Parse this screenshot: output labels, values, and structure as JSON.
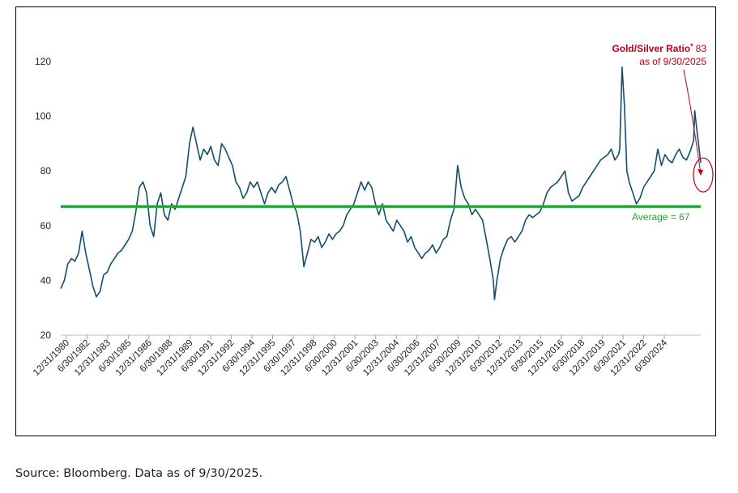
{
  "source_note": "Source: Bloomberg. Data as of 9/30/2025.",
  "colors": {
    "series": "#134f6a",
    "average": "#22a83a",
    "annotation": "#c0001a"
  },
  "chart_data": {
    "type": "line",
    "title": "",
    "xlabel": "",
    "ylabel": "",
    "ylim": [
      20,
      120
    ],
    "yticks": [
      20,
      40,
      60,
      80,
      100,
      120
    ],
    "grid": false,
    "x_tick_labels": [
      "12/31/1980",
      "6/30/1982",
      "12/31/1983",
      "6/30/1985",
      "12/31/1986",
      "6/30/1988",
      "12/31/1989",
      "6/30/1991",
      "12/31/1992",
      "6/30/1994",
      "12/31/1995",
      "6/30/1997",
      "12/31/1998",
      "6/30/2000",
      "12/31/2001",
      "6/30/2003",
      "12/31/2004",
      "6/30/2006",
      "12/31/2007",
      "6/30/2009",
      "12/31/2010",
      "6/30/2012",
      "12/31/2013",
      "6/30/2015",
      "12/31/2016",
      "6/30/2018",
      "12/31/2019",
      "6/30/2021",
      "12/31/2022",
      "6/30/2024"
    ],
    "series": [
      {
        "name": "",
        "points": [
          [
            "1980-12-31",
            37
          ],
          [
            "1981-03-31",
            40
          ],
          [
            "1981-06-30",
            46
          ],
          [
            "1981-09-30",
            48
          ],
          [
            "1981-12-31",
            47
          ],
          [
            "1982-03-31",
            50
          ],
          [
            "1982-06-30",
            58
          ],
          [
            "1982-09-30",
            50
          ],
          [
            "1982-12-31",
            44
          ],
          [
            "1983-03-31",
            38
          ],
          [
            "1983-06-30",
            34
          ],
          [
            "1983-09-30",
            36
          ],
          [
            "1983-12-31",
            42
          ],
          [
            "1984-03-31",
            43
          ],
          [
            "1984-06-30",
            46
          ],
          [
            "1984-09-30",
            48
          ],
          [
            "1984-12-31",
            50
          ],
          [
            "1985-03-31",
            51
          ],
          [
            "1985-06-30",
            53
          ],
          [
            "1985-09-30",
            55
          ],
          [
            "1985-12-31",
            58
          ],
          [
            "1986-03-31",
            65
          ],
          [
            "1986-06-30",
            74
          ],
          [
            "1986-09-30",
            76
          ],
          [
            "1986-12-31",
            72
          ],
          [
            "1987-03-31",
            60
          ],
          [
            "1987-06-30",
            56
          ],
          [
            "1987-09-30",
            68
          ],
          [
            "1987-12-31",
            72
          ],
          [
            "1988-03-31",
            64
          ],
          [
            "1988-06-30",
            62
          ],
          [
            "1988-09-30",
            68
          ],
          [
            "1988-12-31",
            66
          ],
          [
            "1989-03-31",
            70
          ],
          [
            "1989-06-30",
            74
          ],
          [
            "1989-09-30",
            78
          ],
          [
            "1989-12-31",
            90
          ],
          [
            "1990-03-31",
            96
          ],
          [
            "1990-06-30",
            90
          ],
          [
            "1990-09-30",
            84
          ],
          [
            "1990-12-31",
            88
          ],
          [
            "1991-03-31",
            86
          ],
          [
            "1991-06-30",
            89
          ],
          [
            "1991-09-30",
            84
          ],
          [
            "1991-12-31",
            82
          ],
          [
            "1992-03-31",
            90
          ],
          [
            "1992-06-30",
            88
          ],
          [
            "1992-09-30",
            85
          ],
          [
            "1992-12-31",
            82
          ],
          [
            "1993-03-31",
            76
          ],
          [
            "1993-06-30",
            74
          ],
          [
            "1993-09-30",
            70
          ],
          [
            "1993-12-31",
            72
          ],
          [
            "1994-03-31",
            76
          ],
          [
            "1994-06-30",
            74
          ],
          [
            "1994-09-30",
            76
          ],
          [
            "1994-12-31",
            72
          ],
          [
            "1995-03-31",
            68
          ],
          [
            "1995-06-30",
            72
          ],
          [
            "1995-09-30",
            74
          ],
          [
            "1995-12-31",
            72
          ],
          [
            "1996-03-31",
            75
          ],
          [
            "1996-06-30",
            76
          ],
          [
            "1996-09-30",
            78
          ],
          [
            "1996-12-31",
            73
          ],
          [
            "1997-03-31",
            68
          ],
          [
            "1997-06-30",
            65
          ],
          [
            "1997-09-30",
            58
          ],
          [
            "1997-12-31",
            45
          ],
          [
            "1998-03-31",
            50
          ],
          [
            "1998-06-30",
            55
          ],
          [
            "1998-09-30",
            54
          ],
          [
            "1998-12-31",
            56
          ],
          [
            "1999-03-31",
            52
          ],
          [
            "1999-06-30",
            54
          ],
          [
            "1999-09-30",
            57
          ],
          [
            "1999-12-31",
            55
          ],
          [
            "2000-03-31",
            57
          ],
          [
            "2000-06-30",
            58
          ],
          [
            "2000-09-30",
            60
          ],
          [
            "2000-12-31",
            64
          ],
          [
            "2001-03-31",
            66
          ],
          [
            "2001-06-30",
            68
          ],
          [
            "2001-09-30",
            72
          ],
          [
            "2001-12-31",
            76
          ],
          [
            "2002-03-31",
            73
          ],
          [
            "2002-06-30",
            76
          ],
          [
            "2002-09-30",
            74
          ],
          [
            "2002-12-31",
            68
          ],
          [
            "2003-03-31",
            64
          ],
          [
            "2003-06-30",
            68
          ],
          [
            "2003-09-30",
            62
          ],
          [
            "2003-12-31",
            60
          ],
          [
            "2004-03-31",
            58
          ],
          [
            "2004-06-30",
            62
          ],
          [
            "2004-09-30",
            60
          ],
          [
            "2004-12-31",
            58
          ],
          [
            "2005-03-31",
            54
          ],
          [
            "2005-06-30",
            56
          ],
          [
            "2005-09-30",
            52
          ],
          [
            "2005-12-31",
            50
          ],
          [
            "2006-03-31",
            48
          ],
          [
            "2006-06-30",
            50
          ],
          [
            "2006-09-30",
            51
          ],
          [
            "2006-12-31",
            53
          ],
          [
            "2007-03-31",
            50
          ],
          [
            "2007-06-30",
            52
          ],
          [
            "2007-09-30",
            55
          ],
          [
            "2007-12-31",
            56
          ],
          [
            "2008-03-31",
            62
          ],
          [
            "2008-06-30",
            66
          ],
          [
            "2008-09-30",
            82
          ],
          [
            "2008-12-31",
            74
          ],
          [
            "2009-03-31",
            70
          ],
          [
            "2009-06-30",
            68
          ],
          [
            "2009-09-30",
            64
          ],
          [
            "2009-12-31",
            66
          ],
          [
            "2010-03-31",
            64
          ],
          [
            "2010-06-30",
            62
          ],
          [
            "2010-09-30",
            55
          ],
          [
            "2010-12-31",
            48
          ],
          [
            "2011-03-31",
            40
          ],
          [
            "2011-04-30",
            33
          ],
          [
            "2011-06-30",
            40
          ],
          [
            "2011-09-30",
            48
          ],
          [
            "2011-12-31",
            52
          ],
          [
            "2012-03-31",
            55
          ],
          [
            "2012-06-30",
            56
          ],
          [
            "2012-09-30",
            54
          ],
          [
            "2012-12-31",
            56
          ],
          [
            "2013-03-31",
            58
          ],
          [
            "2013-06-30",
            62
          ],
          [
            "2013-09-30",
            64
          ],
          [
            "2013-12-31",
            63
          ],
          [
            "2014-03-31",
            64
          ],
          [
            "2014-06-30",
            65
          ],
          [
            "2014-09-30",
            68
          ],
          [
            "2014-12-31",
            72
          ],
          [
            "2015-03-31",
            74
          ],
          [
            "2015-06-30",
            75
          ],
          [
            "2015-09-30",
            76
          ],
          [
            "2015-12-31",
            78
          ],
          [
            "2016-03-31",
            80
          ],
          [
            "2016-06-30",
            72
          ],
          [
            "2016-09-30",
            69
          ],
          [
            "2016-12-31",
            70
          ],
          [
            "2017-03-31",
            71
          ],
          [
            "2017-06-30",
            74
          ],
          [
            "2017-09-30",
            76
          ],
          [
            "2017-12-31",
            78
          ],
          [
            "2018-03-31",
            80
          ],
          [
            "2018-06-30",
            82
          ],
          [
            "2018-09-30",
            84
          ],
          [
            "2018-12-31",
            85
          ],
          [
            "2019-03-31",
            86
          ],
          [
            "2019-06-30",
            88
          ],
          [
            "2019-09-30",
            84
          ],
          [
            "2019-12-31",
            86
          ],
          [
            "2020-01-31",
            88
          ],
          [
            "2020-03-31",
            118
          ],
          [
            "2020-05-31",
            104
          ],
          [
            "2020-07-31",
            80
          ],
          [
            "2020-09-30",
            76
          ],
          [
            "2020-12-31",
            72
          ],
          [
            "2021-03-31",
            68
          ],
          [
            "2021-06-30",
            70
          ],
          [
            "2021-09-30",
            74
          ],
          [
            "2021-12-31",
            76
          ],
          [
            "2022-03-31",
            78
          ],
          [
            "2022-06-30",
            80
          ],
          [
            "2022-09-30",
            88
          ],
          [
            "2022-12-31",
            82
          ],
          [
            "2023-03-31",
            86
          ],
          [
            "2023-06-30",
            84
          ],
          [
            "2023-09-30",
            83
          ],
          [
            "2023-12-31",
            86
          ],
          [
            "2024-03-31",
            88
          ],
          [
            "2024-06-30",
            85
          ],
          [
            "2024-09-30",
            84
          ],
          [
            "2024-12-31",
            87
          ],
          [
            "2025-03-31",
            91
          ],
          [
            "2025-04-30",
            102
          ],
          [
            "2025-06-30",
            94
          ],
          [
            "2025-09-30",
            83
          ]
        ]
      }
    ],
    "reference_line": {
      "value": 67,
      "label": "Average = 67"
    },
    "annotation": {
      "title": "Gold/Silver Ratio",
      "marker": "*",
      "value": "83",
      "subtitle": "as of 9/30/2025"
    }
  }
}
